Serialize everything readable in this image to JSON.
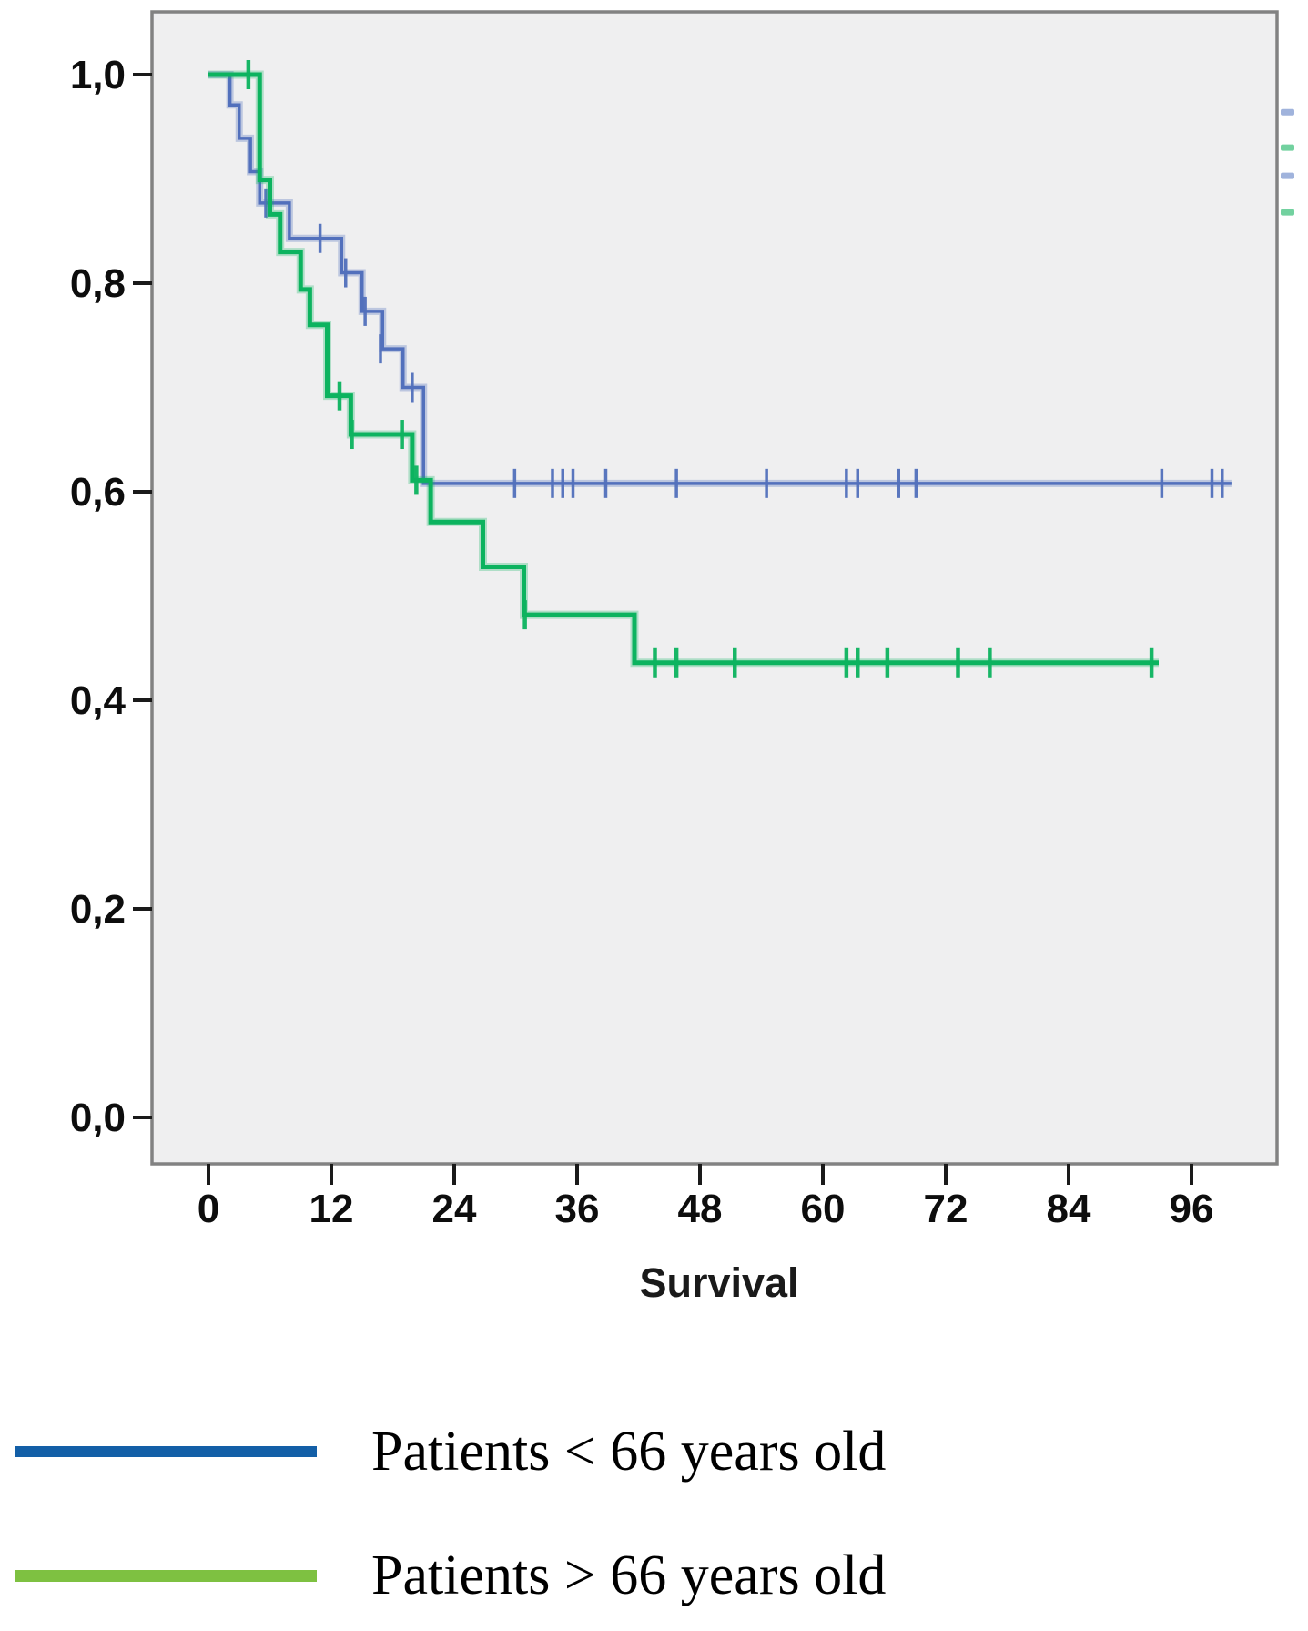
{
  "figure": {
    "background": "#ffffff",
    "plot_background": "#efeff0",
    "plot_border_color": "#828282",
    "tick_color": "#1a1a1a"
  },
  "chart_data": {
    "type": "line",
    "subtype": "kaplan_meier_step",
    "title": "",
    "xlabel": "Survival",
    "ylabel": "",
    "xlim": [
      0,
      104
    ],
    "ylim": [
      0.0,
      1.0
    ],
    "grid": false,
    "legend_position": "below",
    "x_ticks": {
      "values": [
        0,
        12,
        24,
        36,
        48,
        60,
        72,
        84,
        96
      ],
      "labels": [
        "0",
        "12",
        "24",
        "36",
        "48",
        "60",
        "72",
        "84",
        "96"
      ]
    },
    "y_ticks": {
      "values": [
        1.0,
        0.8,
        0.6,
        0.4,
        0.2,
        0.0
      ],
      "labels": [
        "1,0",
        "0,8",
        "0,6",
        "0,4",
        "0,2",
        "0,0"
      ]
    },
    "series": [
      {
        "name": "Patients < 66 years old",
        "color": "#5270bc",
        "halo_color": "rgba(82,112,188,0.32)",
        "legend_color": "#135fa7",
        "steps": [
          [
            0,
            1.0
          ],
          [
            2.1,
            0.971
          ],
          [
            3.0,
            0.939
          ],
          [
            4.1,
            0.907
          ],
          [
            5.0,
            0.877
          ],
          [
            7.9,
            0.843
          ],
          [
            13.0,
            0.81
          ],
          [
            15.0,
            0.773
          ],
          [
            17.0,
            0.737
          ],
          [
            19.0,
            0.7
          ],
          [
            21.0,
            0.608
          ]
        ],
        "end_time": 99.9,
        "censors": [
          [
            5.6,
            0.877
          ],
          [
            10.9,
            0.843
          ],
          [
            13.4,
            0.81
          ],
          [
            15.3,
            0.773
          ],
          [
            16.8,
            0.737
          ],
          [
            19.9,
            0.7
          ],
          [
            29.9,
            0.608
          ],
          [
            33.6,
            0.608
          ],
          [
            34.6,
            0.608
          ],
          [
            35.6,
            0.608
          ],
          [
            38.8,
            0.608
          ],
          [
            45.7,
            0.608
          ],
          [
            54.5,
            0.608
          ],
          [
            62.3,
            0.608
          ],
          [
            63.4,
            0.608
          ],
          [
            67.4,
            0.608
          ],
          [
            69.1,
            0.608
          ],
          [
            93.1,
            0.608
          ],
          [
            98.0,
            0.608
          ],
          [
            99.0,
            0.608
          ]
        ]
      },
      {
        "name": "Patients > 66 years old",
        "color": "#0cb35f",
        "halo_color": "rgba(12,179,95,0.28)",
        "legend_color": "#7ec141",
        "steps": [
          [
            0,
            1.0
          ],
          [
            5.0,
            0.899
          ],
          [
            6.0,
            0.866
          ],
          [
            7.0,
            0.83
          ],
          [
            9.0,
            0.794
          ],
          [
            9.9,
            0.76
          ],
          [
            11.6,
            0.692
          ],
          [
            13.9,
            0.655
          ],
          [
            19.9,
            0.611
          ],
          [
            21.7,
            0.571
          ],
          [
            26.8,
            0.528
          ],
          [
            30.8,
            0.482
          ],
          [
            41.6,
            0.436
          ]
        ],
        "end_time": 92.8,
        "censors": [
          [
            3.9,
            1.0
          ],
          [
            12.8,
            0.692
          ],
          [
            14.0,
            0.655
          ],
          [
            18.9,
            0.655
          ],
          [
            20.3,
            0.611
          ],
          [
            30.9,
            0.482
          ],
          [
            43.6,
            0.436
          ],
          [
            45.7,
            0.436
          ],
          [
            51.4,
            0.436
          ],
          [
            62.3,
            0.436
          ],
          [
            63.4,
            0.436
          ],
          [
            66.3,
            0.436
          ],
          [
            73.2,
            0.436
          ],
          [
            76.3,
            0.436
          ],
          [
            92.1,
            0.436
          ]
        ]
      }
    ],
    "cropped_right_edge_marks": [
      {
        "color": "#8fa6d6",
        "v": 0.964
      },
      {
        "color": "#59c98e",
        "v": 0.93
      },
      {
        "color": "#8fa6d6",
        "v": 0.903
      },
      {
        "color": "#59c98e",
        "v": 0.868
      }
    ]
  }
}
